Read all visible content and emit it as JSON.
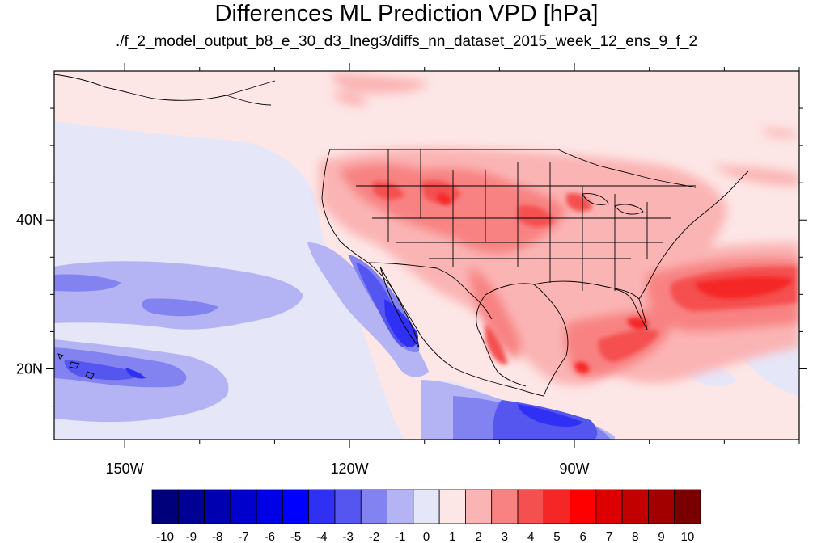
{
  "title": "Differences ML Prediction VPD [hPa]",
  "subtitle": "./f_2_model_output_b8_e_30_d3_lneg3/diffs_nn_dataset_2015_week_12_ens_9_f_2",
  "axes": {
    "lon_ticks": [
      {
        "value": -150,
        "label": "150W"
      },
      {
        "value": -120,
        "label": "120W"
      },
      {
        "value": -90,
        "label": "90W"
      }
    ],
    "lat_ticks": [
      {
        "value": 40,
        "label": "40N"
      },
      {
        "value": 20,
        "label": "20N"
      }
    ],
    "lon_range": [
      -159.4,
      -60
    ],
    "lat_range": [
      10.5,
      60
    ]
  },
  "colorbar": {
    "labels": [
      "-10",
      "-9",
      "-8",
      "-7",
      "-6",
      "-5",
      "-4",
      "-3",
      "-2",
      "-1",
      "0",
      "1",
      "2",
      "3",
      "4",
      "5",
      "6",
      "7",
      "8",
      "9",
      "10"
    ],
    "colors": [
      "#00007a",
      "#000095",
      "#0000b0",
      "#0000cc",
      "#0000e6",
      "#0000ff",
      "#3030f5",
      "#5555f0",
      "#8282f0",
      "#b4b4f5",
      "#e6e6f9",
      "#fde6e6",
      "#fbb4b4",
      "#f88282",
      "#f55050",
      "#f52626",
      "#ff0000",
      "#dd0000",
      "#c20000",
      "#a20000",
      "#7a0000"
    ]
  }
}
